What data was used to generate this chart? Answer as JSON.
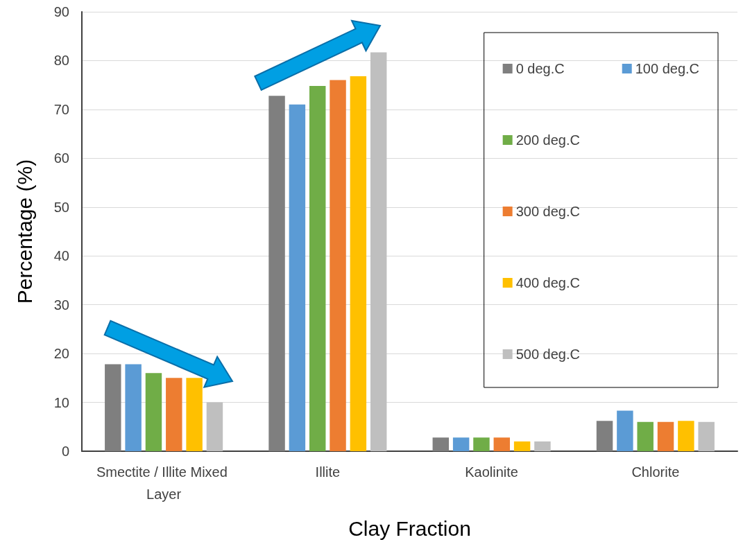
{
  "chart_data": {
    "type": "bar",
    "xlabel": "Clay Fraction",
    "ylabel": "Percentage (%)",
    "categories": [
      "Smectite / Illite Mixed Layer",
      "Illite",
      "Kaolinite",
      "Chlorite"
    ],
    "series": [
      {
        "name": "0 deg.C",
        "color": "#7f7f7f",
        "values": [
          17.8,
          72.8,
          2.8,
          6.2
        ]
      },
      {
        "name": "100 deg.C",
        "color": "#5b9bd5",
        "values": [
          17.8,
          71,
          2.8,
          8.3
        ]
      },
      {
        "name": "200 deg.C",
        "color": "#70ad47",
        "values": [
          16,
          74.8,
          2.8,
          6
        ]
      },
      {
        "name": "300 deg.C",
        "color": "#ed7d31",
        "values": [
          15,
          76,
          2.8,
          6
        ]
      },
      {
        "name": "400 deg.C",
        "color": "#ffc000",
        "values": [
          15,
          76.8,
          2,
          6.2
        ]
      },
      {
        "name": "500 deg.C",
        "color": "#bfbfbf",
        "values": [
          10,
          81.7,
          2,
          6
        ]
      }
    ],
    "ylim": [
      0,
      90
    ],
    "yticks": [
      0,
      10,
      20,
      30,
      40,
      50,
      60,
      70,
      80,
      90
    ],
    "grid": "y",
    "legend": "top right"
  }
}
